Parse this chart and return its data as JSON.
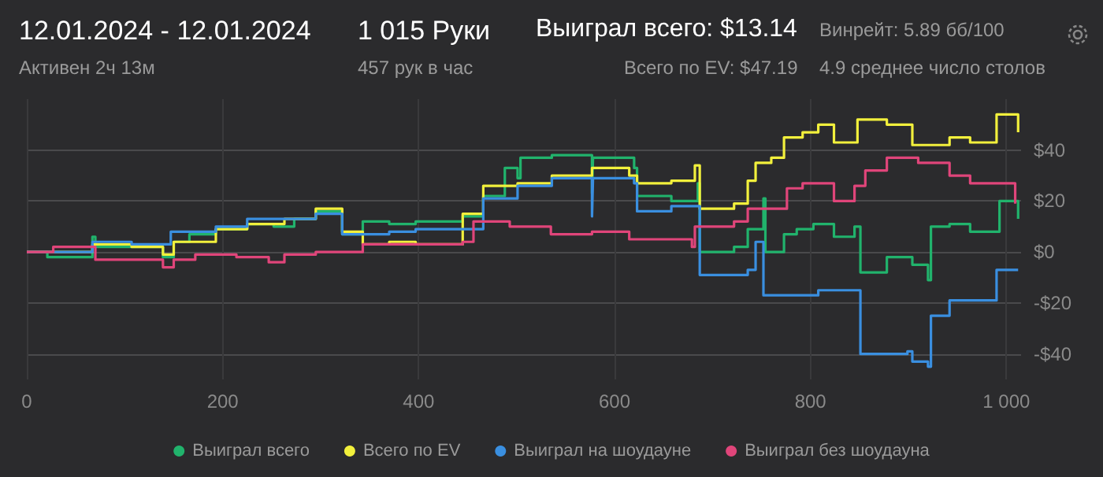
{
  "chart_data": {
    "type": "step",
    "annotations": [
      "12.01.2024 - 12.01.2024",
      "Активен 2ч 13м",
      "1 015 Руки",
      "457 рук в час",
      "Выиграл всего: $13.14",
      "Всего по EV: $47.19",
      "Винрейт: 5.89 бб/100",
      "4.9 среднее число столов"
    ],
    "xlim": [
      0,
      1015
    ],
    "xticks": [
      0,
      200,
      400,
      600,
      800,
      {
        "value": 1000,
        "label": "1 000"
      }
    ],
    "ylim": [
      -50,
      60
    ],
    "yticks": [
      {
        "value": -40,
        "label": "-$40"
      },
      {
        "value": -20,
        "label": "-$20"
      },
      {
        "value": 0,
        "label": "$0"
      },
      {
        "value": 20,
        "label": "$20"
      },
      {
        "value": 40,
        "label": "$40"
      }
    ],
    "grid": true,
    "legend": "bottom",
    "series": [
      {
        "name": "Выиграл всего",
        "color": "#21b36c",
        "x": [
          0,
          21,
          67,
          70,
          139,
          150,
          166,
          193,
          225,
          252,
          273,
          295,
          322,
          343,
          370,
          397,
          445,
          466,
          488,
          501,
          504,
          536,
          577,
          578,
          620,
          623,
          658,
          685,
          687,
          722,
          736,
          752,
          754,
          773,
          786,
          803,
          824,
          845,
          851,
          878,
          904,
          920,
          923,
          942,
          963,
          993,
          1012
        ],
        "values": [
          0,
          -2,
          6,
          2,
          -2,
          4,
          7,
          9,
          11,
          10,
          13,
          16,
          7,
          12,
          11,
          12,
          14,
          22,
          33,
          29,
          37,
          38,
          23,
          37,
          33,
          22,
          20,
          27,
          0,
          2,
          9,
          21,
          0,
          7,
          9,
          11,
          6,
          10,
          -8,
          -2,
          -5,
          -11,
          10,
          11,
          8,
          20,
          13
        ]
      },
      {
        "name": "Всего по EV",
        "color": "#f2f03c",
        "x": [
          0,
          67,
          107,
          139,
          150,
          193,
          225,
          263,
          295,
          322,
          343,
          370,
          397,
          445,
          466,
          501,
          536,
          577,
          615,
          623,
          658,
          682,
          687,
          722,
          736,
          744,
          760,
          773,
          792,
          808,
          824,
          848,
          878,
          904,
          942,
          963,
          990,
          1012
        ],
        "values": [
          0,
          3,
          2,
          -1,
          4,
          9,
          11,
          13,
          17,
          8,
          3,
          4,
          3,
          15,
          26,
          27,
          30,
          33,
          30,
          27,
          28,
          34,
          17,
          19,
          28,
          35,
          37,
          45,
          47,
          50,
          43,
          52,
          50,
          42,
          45,
          43,
          54,
          47
        ]
      },
      {
        "name": "Выиграл на шоудауне",
        "color": "#3a8fe0",
        "x": [
          0,
          67,
          107,
          147,
          193,
          225,
          273,
          295,
          322,
          343,
          370,
          397,
          466,
          501,
          536,
          577,
          578,
          620,
          623,
          658,
          687,
          736,
          744,
          752,
          808,
          851,
          899,
          904,
          920,
          923,
          942,
          990,
          1012
        ],
        "values": [
          0,
          4,
          3,
          8,
          10,
          13,
          13,
          15,
          7,
          7,
          8,
          9,
          21,
          26,
          29,
          14,
          29,
          27,
          16,
          18,
          -9,
          -7,
          4,
          -17,
          -15,
          -40,
          -39,
          -43,
          -45,
          -25,
          -19,
          -7,
          -7
        ]
      },
      {
        "name": "Выиграл без шоудауна",
        "color": "#e0457a",
        "x": [
          0,
          27,
          70,
          139,
          150,
          172,
          214,
          247,
          263,
          295,
          343,
          445,
          456,
          493,
          535,
          577,
          615,
          679,
          682,
          722,
          736,
          776,
          792,
          824,
          845,
          856,
          878,
          910,
          942,
          963,
          990,
          1009
        ],
        "values": [
          0,
          2,
          -3,
          -6,
          -3,
          -1,
          -2,
          -4,
          -1,
          0,
          3,
          4,
          12,
          10,
          7,
          8,
          5,
          2,
          10,
          12,
          17,
          25,
          27,
          20,
          26,
          32,
          37,
          35,
          30,
          27,
          27,
          19
        ]
      }
    ]
  }
}
